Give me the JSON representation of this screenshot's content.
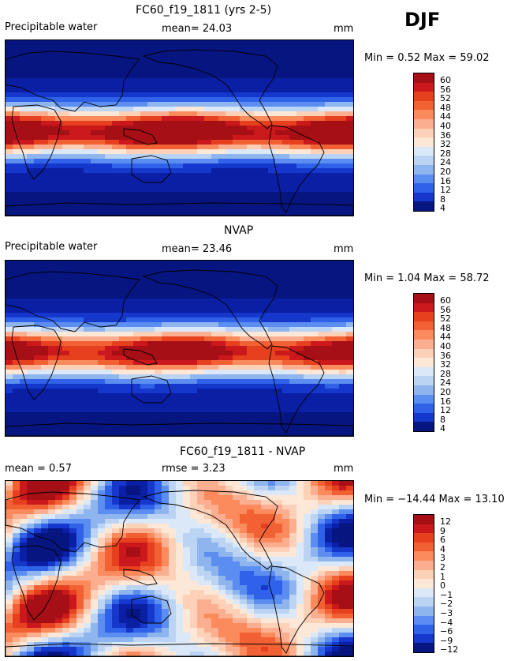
{
  "season": "DJF",
  "panels": [
    {
      "title": "FC60_f19_1811 (yrs 2-5)",
      "left_label": "Precipitable water",
      "mid_label": "mean=  24.03",
      "unit": "mm",
      "minmax": "Min =   0.52 Max =  59.02",
      "legend": [
        "60",
        "56",
        "52",
        "48",
        "44",
        "40",
        "36",
        "32",
        "28",
        "24",
        "20",
        "16",
        "12",
        "8",
        "4"
      ],
      "kind": "field"
    },
    {
      "title": "NVAP",
      "left_label": "Precipitable water",
      "mid_label": "mean=  23.46",
      "unit": "mm",
      "minmax": "Min =   1.04 Max =  58.72",
      "legend": [
        "60",
        "56",
        "52",
        "48",
        "44",
        "40",
        "36",
        "32",
        "28",
        "24",
        "20",
        "16",
        "12",
        "8",
        "4"
      ],
      "kind": "field"
    },
    {
      "title": "FC60_f19_1811 - NVAP",
      "left_label": "mean =   0.57",
      "mid_label": "rmse =   3.23",
      "unit": "mm",
      "minmax": "Min = −14.44 Max =  13.10",
      "legend": [
        "12",
        "9",
        "6",
        "4",
        "3",
        "2",
        "1",
        "0",
        "−1",
        "−2",
        "−3",
        "−4",
        "−6",
        "−9",
        "−12"
      ],
      "kind": "diff"
    }
  ],
  "colors": {
    "scale": [
      "#a50f15",
      "#cb181d",
      "#e6401f",
      "#f26134",
      "#fb8a5c",
      "#fcae91",
      "#fdd0b8",
      "#fde8d8",
      "#dbe8f7",
      "#bcd4f3",
      "#8fb5ef",
      "#5b8ef0",
      "#2f62e8",
      "#1537cc",
      "#0a1fa3",
      "#061580"
    ]
  }
}
